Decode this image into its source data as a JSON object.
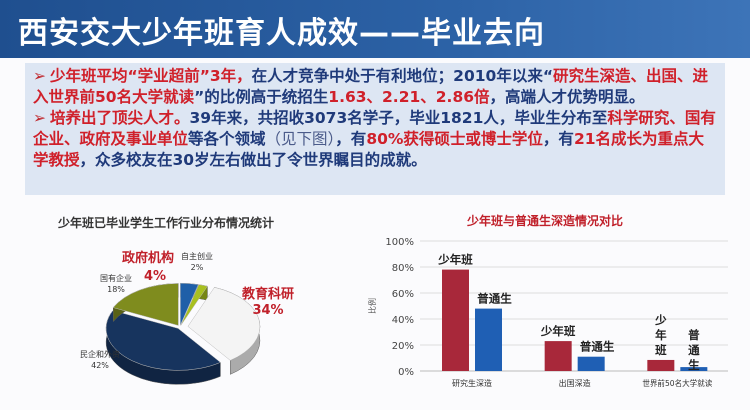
{
  "slide": {
    "title": "西安交大少年班育人成效——毕业去向",
    "bullet_icon": "arrow-bullet-icon",
    "paragraphs": [
      {
        "segments": [
          {
            "text": "少年班平均“学业超前”3年，",
            "style": "red"
          },
          {
            "text": "在人才竞争中处于有利地位；2010年以来“",
            "style": "blue"
          },
          {
            "text": "研究生深造、出国、进入世界前50名大学就读",
            "style": "red"
          },
          {
            "text": "”的比例高于统招生",
            "style": "blue"
          },
          {
            "text": "1.63、2.21、2.86倍",
            "style": "red"
          },
          {
            "text": "，高端人才优势明显。",
            "style": "blue"
          }
        ]
      },
      {
        "segments": [
          {
            "text": "培养出了顶尖人才。",
            "style": "red"
          },
          {
            "text": "39年来，共招收3073名学子，毕业1821人，毕业生分布至",
            "style": "blue"
          },
          {
            "text": "科学研究、国有企业、政府及事业单位",
            "style": "red"
          },
          {
            "text": "等各个领域",
            "style": "blue"
          },
          {
            "text": "（见下图）",
            "style": "gray"
          },
          {
            "text": "，有",
            "style": "blue"
          },
          {
            "text": "80%获得硕士或博士学位",
            "style": "red"
          },
          {
            "text": "，有",
            "style": "blue"
          },
          {
            "text": "21名成长为重点大学教授",
            "style": "red"
          },
          {
            "text": "，众多校友在30岁左右做出了令世界瞩目的成就。",
            "style": "blue"
          }
        ]
      }
    ]
  },
  "colors": {
    "title_bar": "#2c62a6",
    "text_red": "#d0202a",
    "text_blue": "#1f3a7a",
    "bar_red": "#a8283a",
    "bar_blue": "#1f5fb4"
  },
  "chart_data": [
    {
      "type": "pie",
      "title": "少年班已毕业学生工作行业分布情况统计",
      "slices": [
        {
          "label": "政府机构",
          "value": 4,
          "value_label": "4%",
          "color": "#1f5fa8",
          "highlight": true
        },
        {
          "label": "自主创业",
          "value": 2,
          "value_label": "2%",
          "color": "#a8c020",
          "highlight": false
        },
        {
          "label": "教育科研",
          "value": 34,
          "value_label": "34%",
          "color": "#f4f4f4",
          "highlight": true
        },
        {
          "label": "民企和外资",
          "value": 42,
          "value_label": "42%",
          "color": "#17345e",
          "highlight": false
        },
        {
          "label": "国有企业",
          "value": 18,
          "value_label": "18%",
          "color": "#7f8c1e",
          "highlight": false
        }
      ]
    },
    {
      "type": "bar",
      "title": "少年班与普通生深造情况对比",
      "ylabel": "比例",
      "ylim": [
        0,
        100
      ],
      "yticks": [
        "0%",
        "20%",
        "40%",
        "60%",
        "80%",
        "100%"
      ],
      "grid": true,
      "categories": [
        "研究生深造",
        "出国深造",
        "世界前50名大学就读"
      ],
      "series": [
        {
          "name": "少年班",
          "values": [
            78,
            23,
            8.5
          ],
          "color": "#a8283a"
        },
        {
          "name": "普通生",
          "values": [
            48,
            11,
            3
          ],
          "color": "#1f5fb4"
        }
      ]
    }
  ]
}
